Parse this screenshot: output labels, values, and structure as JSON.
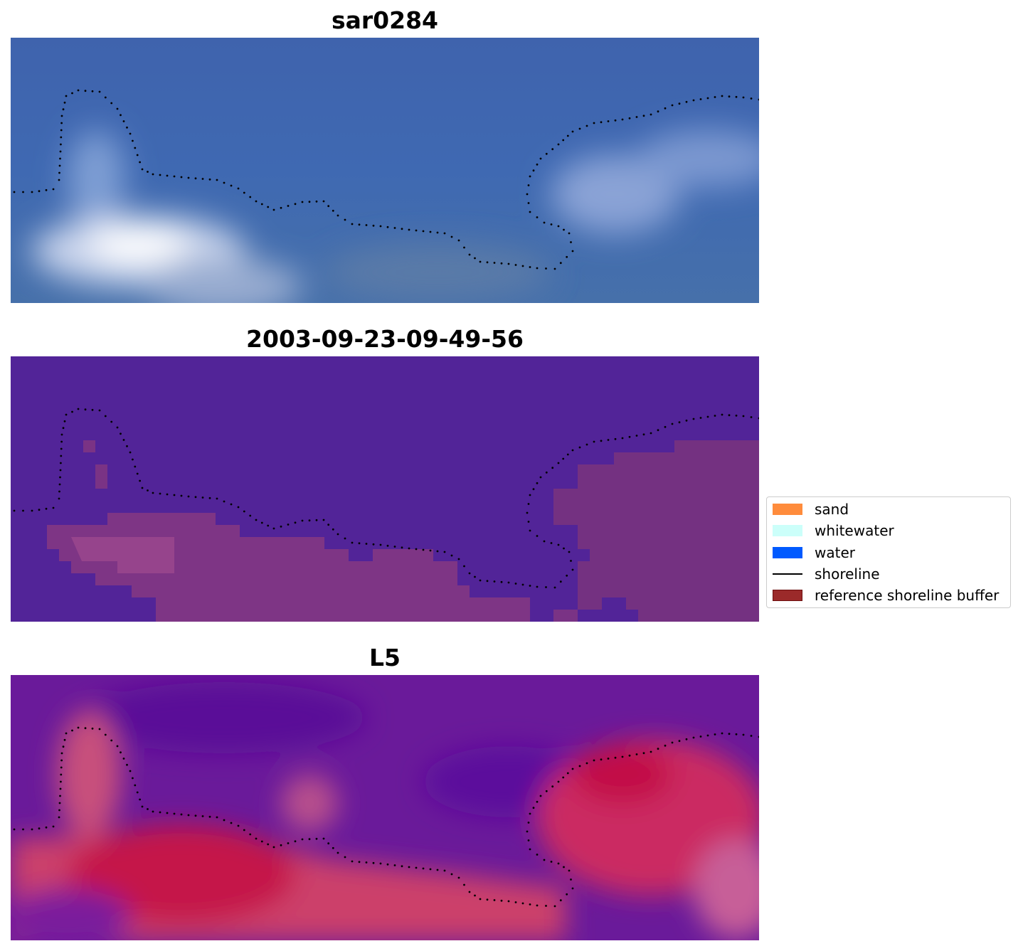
{
  "panels": [
    {
      "title": "sar0284",
      "style": "rgb"
    },
    {
      "title": "2003-09-23-09-49-56",
      "style": "classified"
    },
    {
      "title": "L5",
      "style": "index"
    }
  ],
  "legend": {
    "items": [
      {
        "label": "sand",
        "type": "patch",
        "color": "#ff8c3c"
      },
      {
        "label": "whitewater",
        "type": "patch",
        "color": "#ccfffa"
      },
      {
        "label": "water",
        "type": "patch",
        "color": "#005aff"
      },
      {
        "label": "shoreline",
        "type": "line",
        "color": "#000000"
      },
      {
        "label": "reference shoreline buffer",
        "type": "patch",
        "color": "#9b2a2a"
      }
    ]
  },
  "colors": {
    "rgb_base": "#3e66ad",
    "classified_water": "#522498",
    "classified_buffer": "#7a3385",
    "index_low": "#6a1a9a",
    "index_high": "#c01040",
    "shoreline_dots": "#000000"
  }
}
